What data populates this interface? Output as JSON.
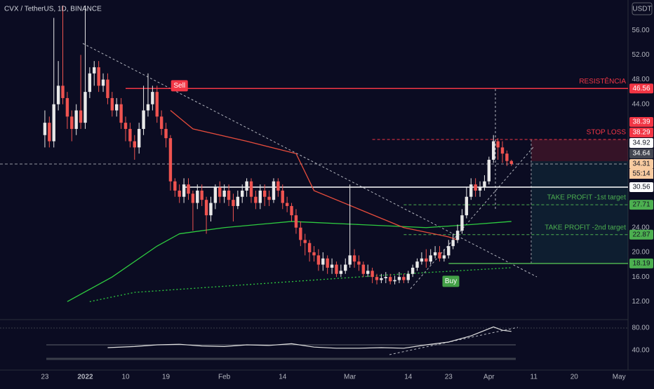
{
  "chart_data": {
    "type": "candlestick",
    "title": "CVX / TetherUS, 1D, BINANCE",
    "currency": "USDT",
    "xlim": [
      -10,
      130
    ],
    "ylim": [
      9.2,
      60.9
    ],
    "xticks": [
      {
        "value": 0,
        "label": "23"
      },
      {
        "value": 9,
        "label": "2022",
        "bold": true
      },
      {
        "value": 18,
        "label": "10"
      },
      {
        "value": 27,
        "label": "19"
      },
      {
        "value": 40,
        "label": "Feb"
      },
      {
        "value": 53,
        "label": "14"
      },
      {
        "value": 68,
        "label": "Mar"
      },
      {
        "value": 81,
        "label": "14"
      },
      {
        "value": 90,
        "label": "23"
      },
      {
        "value": 99,
        "label": "Apr"
      },
      {
        "value": 109,
        "label": "11"
      },
      {
        "value": 118,
        "label": "20"
      },
      {
        "value": 128,
        "label": "May"
      }
    ],
    "yticks": [
      {
        "value": 12,
        "label": "12.00"
      },
      {
        "value": 16,
        "label": "16.00"
      },
      {
        "value": 20,
        "label": "20.00"
      },
      {
        "value": 24,
        "label": "24.00"
      },
      {
        "value": 44,
        "label": "44.00"
      },
      {
        "value": 48,
        "label": "48.00"
      },
      {
        "value": 52,
        "label": "52.00"
      },
      {
        "value": 56,
        "label": "56.00"
      }
    ],
    "up_color": "#e8e8e8",
    "down_color": "#ef5350",
    "x": [
      0,
      1,
      2,
      3,
      4,
      5,
      6,
      7,
      8,
      9,
      10,
      11,
      12,
      13,
      14,
      15,
      16,
      17,
      18,
      19,
      20,
      21,
      22,
      23,
      24,
      25,
      26,
      27,
      28,
      29,
      30,
      31,
      32,
      33,
      34,
      35,
      36,
      37,
      38,
      39,
      40,
      41,
      42,
      43,
      44,
      45,
      46,
      47,
      48,
      49,
      50,
      51,
      52,
      53,
      54,
      55,
      56,
      57,
      58,
      59,
      60,
      61,
      62,
      63,
      64,
      65,
      66,
      67,
      68,
      69,
      70,
      71,
      72,
      73,
      74,
      75,
      76,
      77,
      78,
      79,
      80,
      81,
      82,
      83,
      84,
      85,
      86,
      87,
      88,
      89,
      90,
      91,
      92,
      93,
      94,
      95,
      96,
      97,
      98,
      99,
      100,
      101,
      102,
      103,
      104
    ],
    "open": [
      39,
      41,
      38,
      44,
      47,
      45,
      42,
      40,
      43,
      41,
      46,
      49,
      50,
      47,
      48,
      45,
      43,
      44,
      41,
      40,
      38,
      37,
      40,
      43,
      44,
      46,
      42,
      40,
      38.5,
      31.5,
      30,
      29,
      31,
      29.5,
      28,
      30,
      28.5,
      26,
      28,
      30.5,
      29,
      30,
      28.5,
      27.5,
      29,
      30,
      31.5,
      29,
      28,
      30,
      29,
      28.5,
      31.5,
      30,
      28,
      27.5,
      26,
      24,
      22,
      21.5,
      20,
      19.5,
      18,
      19,
      17.5,
      18,
      16.5,
      17,
      18,
      19.5,
      18.5,
      18,
      16.5,
      17,
      16,
      15.5,
      15.8,
      16,
      15.3,
      15.5,
      16,
      15.5,
      16.5,
      17.5,
      18.5,
      19,
      18.5,
      19.5,
      20,
      19,
      19.5,
      21,
      22,
      23.5,
      26,
      29,
      31,
      30,
      30.5,
      31.5,
      35,
      38,
      37,
      36,
      34.8
    ],
    "high": [
      43,
      42,
      58,
      51,
      60,
      46,
      43,
      44,
      52,
      60,
      50,
      51,
      51,
      49,
      49,
      46,
      45,
      45,
      42,
      41,
      39,
      41,
      47,
      49,
      47,
      47,
      43,
      41,
      39,
      32,
      31,
      32,
      32,
      30,
      31,
      31,
      29,
      29,
      31,
      31.5,
      31,
      31,
      29.5,
      30,
      31,
      32,
      32,
      30,
      31,
      31,
      30,
      32,
      32,
      31,
      29,
      28,
      27,
      25,
      23,
      22,
      21,
      20.5,
      20,
      19.5,
      19,
      18.5,
      18,
      19,
      31,
      20.5,
      19.5,
      18.5,
      18,
      17.5,
      16.5,
      16.5,
      16.8,
      16.5,
      16.2,
      16.8,
      16.5,
      17,
      18,
      19,
      20,
      20.5,
      20.5,
      21,
      21,
      20.5,
      22,
      23,
      24.5,
      27,
      30.5,
      32,
      32,
      31.5,
      32.5,
      35.5,
      39,
      38.5,
      38,
      36.5,
      35
    ],
    "low": [
      37,
      37,
      37,
      43,
      44,
      40,
      38,
      39,
      40,
      40,
      45,
      47,
      46,
      46,
      44,
      42,
      42,
      40,
      38,
      37,
      35,
      36,
      39,
      42,
      43,
      41,
      39,
      37,
      30,
      29,
      28,
      28,
      28.5,
      23.5,
      27,
      27.5,
      23,
      25,
      27,
      28,
      28,
      27.5,
      25,
      27,
      28,
      29,
      28,
      27,
      27,
      27.5,
      27.5,
      28,
      29,
      27,
      26.5,
      25,
      23,
      21,
      19.5,
      18.5,
      18.5,
      17,
      17,
      16.5,
      16.5,
      16,
      16,
      16.5,
      17.5,
      17.5,
      17,
      16,
      16,
      15,
      14.8,
      15,
      15,
      14.8,
      14.8,
      15,
      15,
      15,
      16,
      17,
      18,
      17.5,
      18,
      19,
      18.5,
      18.5,
      19,
      20.5,
      21.5,
      23,
      25.5,
      28.5,
      29,
      29,
      30,
      31,
      34.5,
      35,
      34.5,
      34,
      34
    ],
    "close": [
      41,
      38,
      44,
      47,
      45,
      42,
      40,
      43,
      41,
      46,
      49,
      50,
      47,
      48,
      45,
      43,
      44,
      41,
      40,
      38,
      37,
      40,
      43,
      44,
      46,
      42,
      40,
      38.5,
      31.5,
      30,
      29,
      31,
      29.5,
      28,
      30,
      28.5,
      26,
      28,
      30.5,
      29,
      30,
      28.5,
      27.5,
      29,
      30,
      31.5,
      29,
      28,
      30,
      29,
      28.5,
      31.5,
      30,
      28,
      27.5,
      26,
      24,
      22,
      21.5,
      20,
      19.5,
      18,
      19,
      17.5,
      18,
      16.5,
      17,
      18,
      19.5,
      18.5,
      18,
      16.5,
      17,
      16,
      15.5,
      15.8,
      16,
      15.3,
      15.5,
      16,
      15.5,
      16.5,
      17.5,
      18.5,
      19,
      18.5,
      19.5,
      20,
      19,
      19.5,
      21,
      22,
      23.5,
      26,
      29,
      31,
      30,
      30.5,
      31.5,
      35,
      38,
      37,
      36,
      34.8,
      34.31
    ],
    "overlays": [
      {
        "color": "#2ecc40",
        "dash": false,
        "x": [
          5,
          15,
          25,
          30,
          40,
          55,
          70,
          85,
          95,
          104
        ],
        "values": [
          12,
          16,
          21,
          23,
          24,
          25,
          24.5,
          24,
          24.5,
          25
        ]
      },
      {
        "color": "#2ecc40",
        "dash": true,
        "x": [
          10,
          20,
          40,
          60,
          80,
          104
        ],
        "values": [
          12,
          13.5,
          14.5,
          15.5,
          16.5,
          17.5
        ]
      },
      {
        "color": "#e74c3c",
        "dash": false,
        "x": [
          28,
          33,
          45,
          56,
          60,
          70,
          80,
          90,
          92
        ],
        "values": [
          43,
          40,
          38,
          36,
          30,
          27,
          24,
          22.5,
          22
        ]
      }
    ],
    "levels": [
      {
        "value": 46.56,
        "color": "#f23645",
        "dash": false,
        "from": 18,
        "label": "RESISTÊNCIA"
      },
      {
        "value": 38.29,
        "color": "#f23645",
        "dash": true,
        "from": 73,
        "label": "STOP LOSS"
      },
      {
        "value": 30.56,
        "color": "#ffffff",
        "dash": false,
        "from": 31
      },
      {
        "value": 27.71,
        "color": "#4caf50",
        "dash": true,
        "from": 80,
        "label": "TAKE PROFIT -1st target"
      },
      {
        "value": 22.87,
        "color": "#4caf50",
        "dash": true,
        "from": 80,
        "label": "TAKE PROFIT -2nd target"
      },
      {
        "value": 18.19,
        "color": "#4caf50",
        "dash": false,
        "from": 90
      },
      {
        "value": 34.31,
        "color": "#9598a1",
        "dash": true,
        "from": -10
      }
    ],
    "signals": [
      {
        "text": "Sell",
        "x": 30,
        "value": 47,
        "color": "#f23645"
      },
      {
        "text": "Buy",
        "x": 90.5,
        "value": 15.3,
        "color": "#43a047"
      }
    ],
    "price_labels": [
      {
        "value": 46.56,
        "bg": "#f23645",
        "fg": "#ffffff"
      },
      {
        "value": 38.39,
        "bg": "#f23645",
        "fg": "#ffffff"
      },
      {
        "value": 38.29,
        "bg": "#f23645",
        "fg": "#ffffff"
      },
      {
        "value": 34.92,
        "bg": "#ffffff",
        "fg": "#131722"
      },
      {
        "value": 34.64,
        "bg": "#434651",
        "fg": "#ffffff"
      },
      {
        "value": 34.31,
        "bg": "#f8cba0",
        "fg": "#131722"
      },
      {
        "value": 30.56,
        "bg": "#ffffff",
        "fg": "#131722"
      },
      {
        "value": 27.71,
        "bg": "#4caf50",
        "fg": "#131722"
      },
      {
        "value": 22.87,
        "bg": "#4caf50",
        "fg": "#131722"
      },
      {
        "value": 18.19,
        "bg": "#4caf50",
        "fg": "#131722"
      }
    ],
    "countdown": "55:14",
    "rsi": {
      "ylim": [
        12.5,
        92.5
      ],
      "yticks": [
        {
          "value": 80,
          "label": "80.00"
        },
        {
          "value": 40,
          "label": "40.00"
        }
      ],
      "color": "#e0e0e0",
      "x": [
        14,
        20,
        25,
        30,
        35,
        40,
        45,
        50,
        55,
        60,
        65,
        70,
        75,
        80,
        85,
        90,
        95,
        100,
        102,
        104
      ],
      "values": [
        45,
        47,
        50,
        51,
        48,
        47,
        50,
        49,
        52,
        46,
        44,
        44,
        45,
        44,
        50,
        55,
        66,
        82,
        76,
        74
      ]
    }
  }
}
